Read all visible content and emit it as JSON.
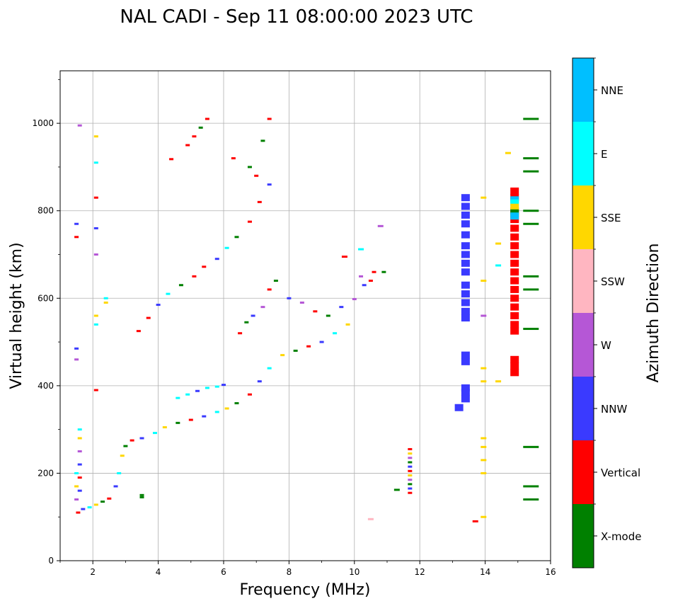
{
  "chart_data": {
    "type": "scatter",
    "title": "NAL CADI - Sep 11 08:00:00 2023 UTC",
    "xlabel": "Frequency (MHz)",
    "ylabel": "Virtual height (km)",
    "xlim": [
      1,
      16
    ],
    "ylim": [
      0,
      1120
    ],
    "xticks": [
      2,
      4,
      6,
      8,
      10,
      12,
      14,
      16
    ],
    "yticks": [
      0,
      200,
      400,
      600,
      800,
      1000
    ],
    "grid": true,
    "colorbar": {
      "label": "Azimuth Direction",
      "categories": [
        {
          "name": "X-mode",
          "color": "#008000"
        },
        {
          "name": "Vertical",
          "color": "#ff0000"
        },
        {
          "name": "NNW",
          "color": "#3a3aff"
        },
        {
          "name": "W",
          "color": "#b557d6"
        },
        {
          "name": "SSW",
          "color": "#ffb6c1"
        },
        {
          "name": "SSE",
          "color": "#ffd700"
        },
        {
          "name": "E",
          "color": "#00ffff"
        },
        {
          "name": "NNE",
          "color": "#00bfff"
        }
      ]
    },
    "traces": [
      {
        "name": "O-trace-1",
        "color_cycle": [
          "Vertical",
          "NNW",
          "E",
          "SSE",
          "X-mode"
        ],
        "points": [
          [
            1.55,
            110
          ],
          [
            1.7,
            118
          ],
          [
            1.9,
            122
          ],
          [
            2.1,
            128
          ],
          [
            2.3,
            135
          ],
          [
            2.5,
            142
          ],
          [
            2.7,
            170
          ],
          [
            2.8,
            200
          ],
          [
            2.9,
            240
          ],
          [
            3.0,
            262
          ],
          [
            3.2,
            275
          ],
          [
            3.5,
            280
          ],
          [
            3.9,
            292
          ],
          [
            4.2,
            305
          ],
          [
            4.6,
            315
          ],
          [
            5.0,
            322
          ],
          [
            5.4,
            330
          ],
          [
            5.8,
            340
          ],
          [
            6.1,
            348
          ],
          [
            6.4,
            360
          ],
          [
            6.8,
            380
          ],
          [
            7.1,
            410
          ],
          [
            7.4,
            440
          ],
          [
            7.8,
            470
          ],
          [
            8.2,
            480
          ],
          [
            8.6,
            490
          ],
          [
            9.0,
            500
          ],
          [
            9.4,
            520
          ],
          [
            9.8,
            540
          ]
        ]
      },
      {
        "name": "cyan-branch",
        "color_cycle": [
          "E",
          "E",
          "NNW"
        ],
        "points": [
          [
            4.6,
            372
          ],
          [
            4.9,
            380
          ],
          [
            5.2,
            388
          ],
          [
            5.5,
            395
          ],
          [
            5.8,
            398
          ],
          [
            6.0,
            402
          ]
        ]
      },
      {
        "name": "O-trace-2",
        "color_cycle": [
          "Vertical",
          "Vertical",
          "NNW",
          "E",
          "X-mode"
        ],
        "points": [
          [
            3.4,
            525
          ],
          [
            3.7,
            555
          ],
          [
            4.0,
            585
          ],
          [
            4.3,
            610
          ],
          [
            4.7,
            630
          ],
          [
            5.1,
            650
          ],
          [
            5.4,
            672
          ],
          [
            5.8,
            690
          ],
          [
            6.1,
            715
          ],
          [
            6.4,
            740
          ],
          [
            6.8,
            775
          ],
          [
            7.1,
            820
          ],
          [
            7.4,
            860
          ]
        ]
      },
      {
        "name": "upper-scatter",
        "color_cycle": [
          "Vertical",
          "Vertical",
          "X-mode"
        ],
        "points": [
          [
            4.9,
            950
          ],
          [
            5.1,
            970
          ],
          [
            5.3,
            990
          ],
          [
            5.5,
            1010
          ],
          [
            6.3,
            920
          ],
          [
            6.8,
            900
          ],
          [
            7.0,
            880
          ],
          [
            7.4,
            1010
          ],
          [
            7.2,
            960
          ],
          [
            4.4,
            918
          ]
        ]
      },
      {
        "name": "F2-mid-scatter",
        "color_cycle": [
          "Vertical",
          "X-mode",
          "NNW",
          "W"
        ],
        "points": [
          [
            6.5,
            520
          ],
          [
            6.7,
            545
          ],
          [
            6.9,
            560
          ],
          [
            7.2,
            580
          ],
          [
            7.4,
            620
          ],
          [
            7.6,
            640
          ],
          [
            8.0,
            600
          ],
          [
            8.4,
            590
          ],
          [
            8.8,
            570
          ],
          [
            9.2,
            560
          ],
          [
            9.6,
            580
          ],
          [
            10.2,
            650
          ],
          [
            10.6,
            660
          ],
          [
            10.9,
            660
          ],
          [
            10.3,
            630
          ],
          [
            10.0,
            598
          ],
          [
            10.5,
            640
          ]
        ]
      },
      {
        "name": "low-freq-scatter",
        "color_cycle": [
          "E",
          "SSE",
          "W",
          "NNW",
          "Vertical"
        ],
        "points": [
          [
            1.6,
            300
          ],
          [
            1.6,
            280
          ],
          [
            1.6,
            250
          ],
          [
            1.6,
            220
          ],
          [
            1.6,
            190
          ],
          [
            1.5,
            200
          ],
          [
            1.5,
            170
          ],
          [
            1.5,
            140
          ],
          [
            1.6,
            160
          ],
          [
            2.1,
            390
          ],
          [
            2.1,
            540
          ],
          [
            2.1,
            560
          ],
          [
            2.1,
            700
          ],
          [
            2.1,
            760
          ],
          [
            2.1,
            830
          ],
          [
            2.1,
            910
          ],
          [
            2.1,
            970
          ],
          [
            1.6,
            995
          ],
          [
            1.5,
            770
          ],
          [
            1.5,
            740
          ],
          [
            2.4,
            600
          ],
          [
            2.4,
            590
          ],
          [
            1.5,
            460
          ],
          [
            1.5,
            485
          ]
        ]
      },
      {
        "name": "bar-13.4",
        "color": "NNW",
        "points": [
          [
            13.4,
            830
          ],
          [
            13.4,
            810
          ],
          [
            13.4,
            790
          ],
          [
            13.4,
            770
          ],
          [
            13.4,
            745
          ],
          [
            13.4,
            720
          ],
          [
            13.4,
            700
          ],
          [
            13.4,
            680
          ],
          [
            13.4,
            660
          ],
          [
            13.4,
            630
          ],
          [
            13.4,
            610
          ],
          [
            13.4,
            590
          ],
          [
            13.4,
            570
          ],
          [
            13.4,
            555
          ],
          [
            13.4,
            470
          ],
          [
            13.4,
            455
          ],
          [
            13.4,
            395
          ],
          [
            13.4,
            385
          ],
          [
            13.4,
            370
          ],
          [
            13.2,
            350
          ]
        ]
      },
      {
        "name": "bar-14.9",
        "color": "Vertical",
        "points": [
          [
            14.9,
            845
          ],
          [
            14.9,
            830
          ],
          [
            14.9,
            800
          ],
          [
            14.9,
            780
          ],
          [
            14.9,
            760
          ],
          [
            14.9,
            740
          ],
          [
            14.9,
            720
          ],
          [
            14.9,
            700
          ],
          [
            14.9,
            680
          ],
          [
            14.9,
            660
          ],
          [
            14.9,
            640
          ],
          [
            14.9,
            620
          ],
          [
            14.9,
            600
          ],
          [
            14.9,
            580
          ],
          [
            14.9,
            560
          ],
          [
            14.9,
            540
          ],
          [
            14.9,
            525
          ],
          [
            14.9,
            460
          ],
          [
            14.9,
            445
          ],
          [
            14.9,
            430
          ]
        ]
      },
      {
        "name": "bar-14.9-overlay",
        "color_cycle": [
          "NNE",
          "E",
          "SSE",
          "X-mode"
        ],
        "points": [
          [
            14.9,
            825
          ],
          [
            14.9,
            818
          ],
          [
            14.9,
            808
          ],
          [
            14.9,
            795
          ],
          [
            14.9,
            788
          ]
        ]
      },
      {
        "name": "xmode-ticks-15.4",
        "color": "X-mode",
        "points": [
          [
            15.4,
            1010
          ],
          [
            15.4,
            920
          ],
          [
            15.4,
            890
          ],
          [
            15.4,
            800
          ],
          [
            15.4,
            770
          ],
          [
            15.4,
            650
          ],
          [
            15.4,
            620
          ],
          [
            15.4,
            530
          ],
          [
            15.4,
            260
          ],
          [
            15.4,
            170
          ],
          [
            15.4,
            140
          ]
        ]
      },
      {
        "name": "sse-ticks-13.9",
        "color": "SSE",
        "points": [
          [
            13.95,
            830
          ],
          [
            13.95,
            640
          ],
          [
            13.95,
            440
          ],
          [
            13.95,
            410
          ],
          [
            13.95,
            280
          ],
          [
            13.95,
            260
          ],
          [
            13.95,
            230
          ],
          [
            13.95,
            200
          ],
          [
            13.95,
            100
          ],
          [
            14.7,
            932
          ],
          [
            14.4,
            725
          ],
          [
            14.4,
            410
          ]
        ]
      },
      {
        "name": "misc-ticks",
        "color_cycle": [
          "W",
          "E",
          "Vertical",
          "X-mode",
          "SSW"
        ],
        "points": [
          [
            13.95,
            560
          ],
          [
            14.4,
            675
          ],
          [
            13.7,
            90
          ],
          [
            11.3,
            162
          ],
          [
            10.5,
            95
          ],
          [
            10.8,
            765
          ],
          [
            10.2,
            712
          ],
          [
            9.7,
            695
          ]
        ]
      },
      {
        "name": "column-11.7",
        "color_cycle": [
          "Vertical",
          "SSE",
          "W",
          "X-mode",
          "NNW"
        ],
        "points": [
          [
            11.7,
            255
          ],
          [
            11.7,
            245
          ],
          [
            11.7,
            235
          ],
          [
            11.7,
            225
          ],
          [
            11.7,
            215
          ],
          [
            11.7,
            205
          ],
          [
            11.7,
            195
          ],
          [
            11.7,
            185
          ],
          [
            11.7,
            175
          ],
          [
            11.7,
            165
          ],
          [
            11.7,
            155
          ]
        ]
      },
      {
        "name": "green-small",
        "color": "X-mode",
        "points": [
          [
            3.5,
            150
          ],
          [
            3.5,
            145
          ]
        ]
      }
    ]
  }
}
